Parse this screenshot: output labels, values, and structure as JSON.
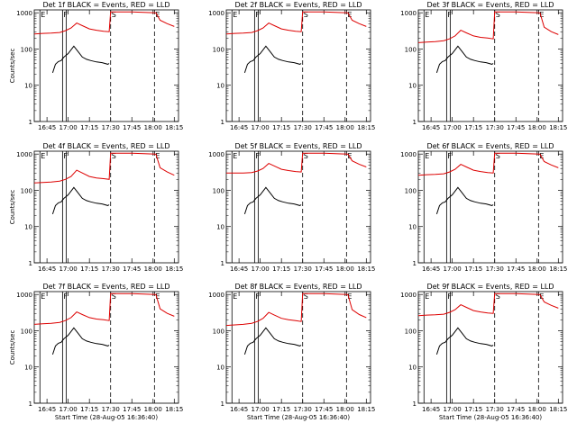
{
  "figure": {
    "xtick_labels": [
      "16:45",
      "17:00",
      "17:15",
      "17:30",
      "17:45",
      "18:00",
      "18:15"
    ],
    "ytick_labels": [
      "1",
      "10",
      "100",
      "1000"
    ],
    "colors": {
      "events": "#000000",
      "lld": "#dd0000",
      "axes": "#000000"
    }
  },
  "chart_data": [
    {
      "type": "line",
      "title": "Det 1f BLACK = Events, RED = LLD",
      "xlabel": "",
      "ylabel": "Counts/sec",
      "xlim_minutes_after_1636": [
        0,
        102
      ],
      "ylim": [
        1,
        1200
      ],
      "yscale": "log",
      "grid": false,
      "markers": [
        {
          "label": "E",
          "at": "16:40"
        },
        {
          "label": "F",
          "at": "16:56"
        },
        {
          "label": "S",
          "at": "17:30"
        },
        {
          "label": "E",
          "at": "18:01"
        }
      ],
      "series": [
        {
          "name": "Events",
          "color": "#000000",
          "x": [
            "16:49",
            "16:51",
            "16:53",
            "16:55",
            "16:57",
            "17:00",
            "17:04",
            "17:07",
            "17:10",
            "17:13",
            "17:16",
            "17:20",
            "17:24",
            "17:28",
            "17:29"
          ],
          "y": [
            22,
            38,
            45,
            48,
            60,
            75,
            120,
            85,
            60,
            52,
            48,
            44,
            42,
            38,
            40
          ]
        },
        {
          "name": "LLD",
          "color": "#dd0000",
          "x": [
            "16:36",
            "16:42",
            "16:48",
            "16:54",
            "16:58",
            "17:02",
            "17:06",
            "17:10",
            "17:15",
            "17:20",
            "17:25",
            "17:29",
            "17:30",
            "17:45",
            "18:02",
            "18:05",
            "18:10",
            "18:15"
          ],
          "y": [
            260,
            270,
            275,
            285,
            320,
            380,
            520,
            440,
            360,
            330,
            310,
            300,
            1050,
            1050,
            1000,
            620,
            500,
            420
          ]
        }
      ]
    },
    {
      "type": "line",
      "title": "Det 2f BLACK = Events, RED = LLD",
      "xlabel": "",
      "ylabel": "",
      "xlim_minutes_after_1636": [
        0,
        102
      ],
      "ylim": [
        1,
        1200
      ],
      "yscale": "log",
      "grid": false,
      "markers": [
        {
          "label": "E",
          "at": "16:40"
        },
        {
          "label": "F",
          "at": "16:56"
        },
        {
          "label": "S",
          "at": "17:30"
        },
        {
          "label": "E",
          "at": "18:01"
        }
      ],
      "series": [
        {
          "name": "Events",
          "color": "#000000",
          "x": [
            "16:49",
            "16:51",
            "16:53",
            "16:55",
            "16:57",
            "17:00",
            "17:04",
            "17:07",
            "17:10",
            "17:13",
            "17:16",
            "17:20",
            "17:24",
            "17:28",
            "17:29"
          ],
          "y": [
            22,
            38,
            45,
            48,
            60,
            75,
            120,
            85,
            60,
            52,
            48,
            44,
            42,
            38,
            40
          ]
        },
        {
          "name": "LLD",
          "color": "#dd0000",
          "x": [
            "16:36",
            "16:42",
            "16:48",
            "16:54",
            "16:58",
            "17:02",
            "17:06",
            "17:10",
            "17:15",
            "17:20",
            "17:25",
            "17:29",
            "17:30",
            "17:45",
            "18:02",
            "18:05",
            "18:10",
            "18:15"
          ],
          "y": [
            260,
            270,
            275,
            285,
            320,
            380,
            520,
            440,
            360,
            330,
            310,
            300,
            1050,
            1050,
            1000,
            620,
            500,
            420
          ]
        }
      ]
    },
    {
      "type": "line",
      "title": "Det 3f BLACK = Events, RED = LLD",
      "xlabel": "",
      "ylabel": "",
      "xlim_minutes_after_1636": [
        0,
        102
      ],
      "ylim": [
        1,
        1200
      ],
      "yscale": "log",
      "grid": false,
      "markers": [
        {
          "label": "E",
          "at": "16:40"
        },
        {
          "label": "F",
          "at": "16:56"
        },
        {
          "label": "S",
          "at": "17:30"
        },
        {
          "label": "E",
          "at": "18:01"
        }
      ],
      "series": [
        {
          "name": "Events",
          "color": "#000000",
          "x": [
            "16:49",
            "16:51",
            "16:53",
            "16:55",
            "16:57",
            "17:00",
            "17:04",
            "17:07",
            "17:10",
            "17:13",
            "17:16",
            "17:20",
            "17:24",
            "17:28",
            "17:29"
          ],
          "y": [
            22,
            38,
            45,
            48,
            60,
            75,
            120,
            85,
            60,
            52,
            48,
            44,
            42,
            38,
            40
          ]
        },
        {
          "name": "LLD",
          "color": "#dd0000",
          "x": [
            "16:36",
            "16:42",
            "16:48",
            "16:54",
            "16:58",
            "17:02",
            "17:06",
            "17:10",
            "17:15",
            "17:20",
            "17:25",
            "17:29",
            "17:30",
            "17:45",
            "18:02",
            "18:05",
            "18:10",
            "18:15"
          ],
          "y": [
            150,
            155,
            160,
            170,
            190,
            230,
            330,
            280,
            230,
            210,
            200,
            190,
            1050,
            1050,
            1000,
            400,
            300,
            250
          ]
        }
      ]
    },
    {
      "type": "line",
      "title": "Det 4f BLACK = Events, RED = LLD",
      "xlabel": "",
      "ylabel": "Counts/sec",
      "xlim_minutes_after_1636": [
        0,
        102
      ],
      "ylim": [
        1,
        1200
      ],
      "yscale": "log",
      "grid": false,
      "markers": [
        {
          "label": "E",
          "at": "16:40"
        },
        {
          "label": "F",
          "at": "16:56"
        },
        {
          "label": "S",
          "at": "17:30"
        },
        {
          "label": "E",
          "at": "18:01"
        }
      ],
      "series": [
        {
          "name": "Events",
          "color": "#000000",
          "x": [
            "16:49",
            "16:51",
            "16:53",
            "16:55",
            "16:57",
            "17:00",
            "17:04",
            "17:07",
            "17:10",
            "17:13",
            "17:16",
            "17:20",
            "17:24",
            "17:28",
            "17:29"
          ],
          "y": [
            22,
            38,
            45,
            48,
            60,
            75,
            120,
            85,
            60,
            52,
            48,
            44,
            42,
            38,
            40
          ]
        },
        {
          "name": "LLD",
          "color": "#dd0000",
          "x": [
            "16:36",
            "16:42",
            "16:48",
            "16:54",
            "16:58",
            "17:02",
            "17:06",
            "17:10",
            "17:15",
            "17:20",
            "17:25",
            "17:29",
            "17:30",
            "17:45",
            "18:02",
            "18:05",
            "18:10",
            "18:15"
          ],
          "y": [
            160,
            165,
            170,
            180,
            200,
            240,
            360,
            300,
            240,
            220,
            210,
            200,
            1050,
            1050,
            1000,
            420,
            320,
            260
          ]
        }
      ]
    },
    {
      "type": "line",
      "title": "Det 5f BLACK = Events, RED = LLD",
      "xlabel": "",
      "ylabel": "",
      "xlim_minutes_after_1636": [
        0,
        102
      ],
      "ylim": [
        1,
        1200
      ],
      "yscale": "log",
      "grid": false,
      "markers": [
        {
          "label": "E",
          "at": "16:40"
        },
        {
          "label": "F",
          "at": "16:56"
        },
        {
          "label": "S",
          "at": "17:30"
        },
        {
          "label": "E",
          "at": "18:01"
        }
      ],
      "series": [
        {
          "name": "Events",
          "color": "#000000",
          "x": [
            "16:49",
            "16:51",
            "16:53",
            "16:55",
            "16:57",
            "17:00",
            "17:04",
            "17:07",
            "17:10",
            "17:13",
            "17:16",
            "17:20",
            "17:24",
            "17:28",
            "17:29"
          ],
          "y": [
            22,
            38,
            45,
            48,
            60,
            75,
            120,
            85,
            60,
            52,
            48,
            44,
            42,
            38,
            40
          ]
        },
        {
          "name": "LLD",
          "color": "#dd0000",
          "x": [
            "16:36",
            "16:42",
            "16:48",
            "16:54",
            "16:58",
            "17:02",
            "17:06",
            "17:10",
            "17:15",
            "17:20",
            "17:25",
            "17:29",
            "17:30",
            "17:45",
            "18:02",
            "18:05",
            "18:10",
            "18:15"
          ],
          "y": [
            300,
            300,
            300,
            310,
            340,
            400,
            550,
            470,
            380,
            350,
            330,
            320,
            1050,
            1050,
            1000,
            650,
            520,
            440
          ]
        }
      ]
    },
    {
      "type": "line",
      "title": "Det 6f BLACK = Events, RED = LLD",
      "xlabel": "",
      "ylabel": "",
      "xlim_minutes_after_1636": [
        0,
        102
      ],
      "ylim": [
        1,
        1200
      ],
      "yscale": "log",
      "grid": false,
      "markers": [
        {
          "label": "E",
          "at": "16:40"
        },
        {
          "label": "F",
          "at": "16:56"
        },
        {
          "label": "S",
          "at": "17:30"
        },
        {
          "label": "E",
          "at": "18:01"
        }
      ],
      "series": [
        {
          "name": "Events",
          "color": "#000000",
          "x": [
            "16:49",
            "16:51",
            "16:53",
            "16:55",
            "16:57",
            "17:00",
            "17:04",
            "17:07",
            "17:10",
            "17:13",
            "17:16",
            "17:20",
            "17:24",
            "17:28",
            "17:29"
          ],
          "y": [
            22,
            38,
            45,
            48,
            60,
            75,
            120,
            85,
            60,
            52,
            48,
            44,
            42,
            38,
            40
          ]
        },
        {
          "name": "LLD",
          "color": "#dd0000",
          "x": [
            "16:36",
            "16:42",
            "16:48",
            "16:54",
            "16:58",
            "17:02",
            "17:06",
            "17:10",
            "17:15",
            "17:20",
            "17:25",
            "17:29",
            "17:30",
            "17:45",
            "18:02",
            "18:05",
            "18:10",
            "18:15"
          ],
          "y": [
            260,
            270,
            275,
            285,
            320,
            380,
            520,
            440,
            360,
            330,
            310,
            300,
            1050,
            1050,
            1000,
            620,
            500,
            420
          ]
        }
      ]
    },
    {
      "type": "line",
      "title": "Det 7f BLACK = Events, RED = LLD",
      "xlabel": "Start Time (28-Aug-05 16:36:40)",
      "ylabel": "Counts/sec",
      "xlim_minutes_after_1636": [
        0,
        102
      ],
      "ylim": [
        1,
        1200
      ],
      "yscale": "log",
      "grid": false,
      "markers": [
        {
          "label": "E",
          "at": "16:40"
        },
        {
          "label": "F",
          "at": "16:56"
        },
        {
          "label": "S",
          "at": "17:30"
        },
        {
          "label": "E",
          "at": "18:01"
        }
      ],
      "series": [
        {
          "name": "Events",
          "color": "#000000",
          "x": [
            "16:49",
            "16:51",
            "16:53",
            "16:55",
            "16:57",
            "17:00",
            "17:04",
            "17:07",
            "17:10",
            "17:13",
            "17:16",
            "17:20",
            "17:24",
            "17:28",
            "17:29"
          ],
          "y": [
            22,
            38,
            45,
            48,
            60,
            75,
            120,
            85,
            60,
            52,
            48,
            44,
            42,
            38,
            40
          ]
        },
        {
          "name": "LLD",
          "color": "#dd0000",
          "x": [
            "16:36",
            "16:42",
            "16:48",
            "16:54",
            "16:58",
            "17:02",
            "17:06",
            "17:10",
            "17:15",
            "17:20",
            "17:25",
            "17:29",
            "17:30",
            "17:45",
            "18:02",
            "18:05",
            "18:10",
            "18:15"
          ],
          "y": [
            150,
            155,
            160,
            170,
            190,
            230,
            330,
            280,
            230,
            210,
            200,
            190,
            1050,
            1050,
            1000,
            400,
            300,
            250
          ]
        }
      ]
    },
    {
      "type": "line",
      "title": "Det 8f BLACK = Events, RED = LLD",
      "xlabel": "Start Time (28-Aug-05 16:36:40)",
      "ylabel": "",
      "xlim_minutes_after_1636": [
        0,
        102
      ],
      "ylim": [
        1,
        1200
      ],
      "yscale": "log",
      "grid": false,
      "markers": [
        {
          "label": "E",
          "at": "16:40"
        },
        {
          "label": "F",
          "at": "16:56"
        },
        {
          "label": "S",
          "at": "17:30"
        },
        {
          "label": "E",
          "at": "18:01"
        }
      ],
      "series": [
        {
          "name": "Events",
          "color": "#000000",
          "x": [
            "16:49",
            "16:51",
            "16:53",
            "16:55",
            "16:57",
            "17:00",
            "17:04",
            "17:07",
            "17:10",
            "17:13",
            "17:16",
            "17:20",
            "17:24",
            "17:28",
            "17:29"
          ],
          "y": [
            22,
            38,
            45,
            48,
            60,
            75,
            120,
            85,
            60,
            52,
            48,
            44,
            42,
            38,
            40
          ]
        },
        {
          "name": "LLD",
          "color": "#dd0000",
          "x": [
            "16:36",
            "16:42",
            "16:48",
            "16:54",
            "16:58",
            "17:02",
            "17:06",
            "17:10",
            "17:15",
            "17:20",
            "17:25",
            "17:29",
            "17:30",
            "17:45",
            "18:02",
            "18:05",
            "18:10",
            "18:15"
          ],
          "y": [
            140,
            145,
            150,
            160,
            180,
            220,
            320,
            270,
            220,
            200,
            190,
            180,
            1050,
            1050,
            1000,
            380,
            280,
            230
          ]
        }
      ]
    },
    {
      "type": "line",
      "title": "Det 9f BLACK = Events, RED = LLD",
      "xlabel": "Start Time (28-Aug-05 16:36:40)",
      "ylabel": "",
      "xlim_minutes_after_1636": [
        0,
        102
      ],
      "ylim": [
        1,
        1200
      ],
      "yscale": "log",
      "grid": false,
      "markers": [
        {
          "label": "E",
          "at": "16:40"
        },
        {
          "label": "F",
          "at": "16:56"
        },
        {
          "label": "S",
          "at": "17:30"
        },
        {
          "label": "E",
          "at": "18:01"
        }
      ],
      "series": [
        {
          "name": "Events",
          "color": "#000000",
          "x": [
            "16:49",
            "16:51",
            "16:53",
            "16:55",
            "16:57",
            "17:00",
            "17:04",
            "17:07",
            "17:10",
            "17:13",
            "17:16",
            "17:20",
            "17:24",
            "17:28",
            "17:29"
          ],
          "y": [
            22,
            38,
            45,
            48,
            60,
            75,
            120,
            85,
            60,
            52,
            48,
            44,
            42,
            38,
            40
          ]
        },
        {
          "name": "LLD",
          "color": "#dd0000",
          "x": [
            "16:36",
            "16:42",
            "16:48",
            "16:54",
            "16:58",
            "17:02",
            "17:06",
            "17:10",
            "17:15",
            "17:20",
            "17:25",
            "17:29",
            "17:30",
            "17:45",
            "18:02",
            "18:05",
            "18:10",
            "18:15"
          ],
          "y": [
            260,
            270,
            275,
            285,
            320,
            380,
            520,
            440,
            360,
            330,
            310,
            300,
            1050,
            1050,
            1000,
            620,
            500,
            420
          ]
        }
      ]
    }
  ]
}
